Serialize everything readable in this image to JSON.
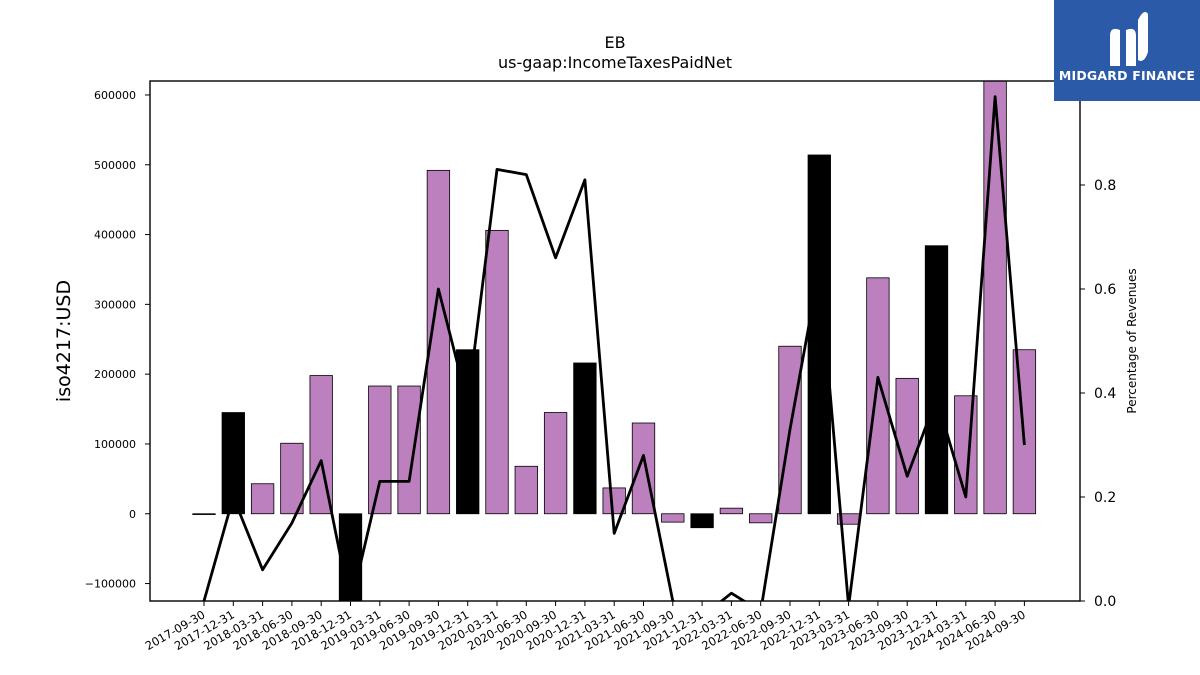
{
  "chart_data": {
    "type": "bar",
    "title": "EB",
    "subtitle": "us-gaap:IncomeTaxesPaidNet",
    "ylabel": "iso4217:USD",
    "y2label": "Percentage of Revenues",
    "ylim": [
      -125000,
      620000
    ],
    "y2lim": [
      0.0,
      1.0
    ],
    "yticks": [
      -100000,
      0,
      100000,
      200000,
      300000,
      400000,
      500000,
      600000
    ],
    "ytick_labels": [
      "−100000",
      "0",
      "100000",
      "200000",
      "300000",
      "400000",
      "500000",
      "600000"
    ],
    "y2ticks": [
      0.0,
      0.2,
      0.4,
      0.6,
      0.8
    ],
    "y2tick_labels": [
      "0.0",
      "0.2",
      "0.4",
      "0.6",
      "0.8"
    ],
    "categories": [
      "2017-09-30",
      "2017-12-31",
      "2018-03-31",
      "2018-06-30",
      "2018-09-30",
      "2018-12-31",
      "2019-03-31",
      "2019-06-30",
      "2019-09-30",
      "2019-12-31",
      "2020-03-31",
      "2020-06-30",
      "2020-09-30",
      "2020-12-31",
      "2021-03-31",
      "2021-06-30",
      "2021-09-30",
      "2021-12-31",
      "2022-03-31",
      "2022-06-30",
      "2022-09-30",
      "2022-12-31",
      "2023-03-31",
      "2023-06-30",
      "2023-09-30",
      "2023-12-31",
      "2024-03-31",
      "2024-06-30",
      "2024-09-30"
    ],
    "values": [
      0,
      145000,
      43000,
      101000,
      198000,
      -125000,
      183000,
      183000,
      492000,
      235000,
      406000,
      68000,
      145000,
      216000,
      37000,
      130000,
      -12000,
      -20000,
      8000,
      -13000,
      240000,
      514000,
      -15000,
      338000,
      194000,
      384000,
      169000,
      620000,
      235000
    ],
    "bar_colors": [
      "#bb80bd",
      "#000000",
      "#bb80bd",
      "#bb80bd",
      "#bb80bd",
      "#000000",
      "#bb80bd",
      "#bb80bd",
      "#bb80bd",
      "#000000",
      "#bb80bd",
      "#bb80bd",
      "#bb80bd",
      "#000000",
      "#bb80bd",
      "#bb80bd",
      "#bb80bd",
      "#000000",
      "#bb80bd",
      "#bb80bd",
      "#bb80bd",
      "#000000",
      "#bb80bd",
      "#bb80bd",
      "#bb80bd",
      "#000000",
      "#bb80bd",
      "#bb80bd",
      "#bb80bd"
    ],
    "line_values": [
      0.0,
      0.2,
      0.06,
      0.15,
      0.27,
      -0.01,
      0.23,
      0.23,
      0.6,
      0.38,
      0.83,
      0.82,
      0.66,
      0.81,
      0.13,
      0.28,
      0.0,
      -0.03,
      0.015,
      -0.02,
      0.33,
      0.64,
      -0.01,
      0.43,
      0.24,
      0.39,
      0.2,
      0.97,
      0.3
    ],
    "line_color": "#000000",
    "grid": false
  },
  "logo": {
    "text": "MIDGARD FINANCE",
    "background": "#2b5aa8"
  }
}
